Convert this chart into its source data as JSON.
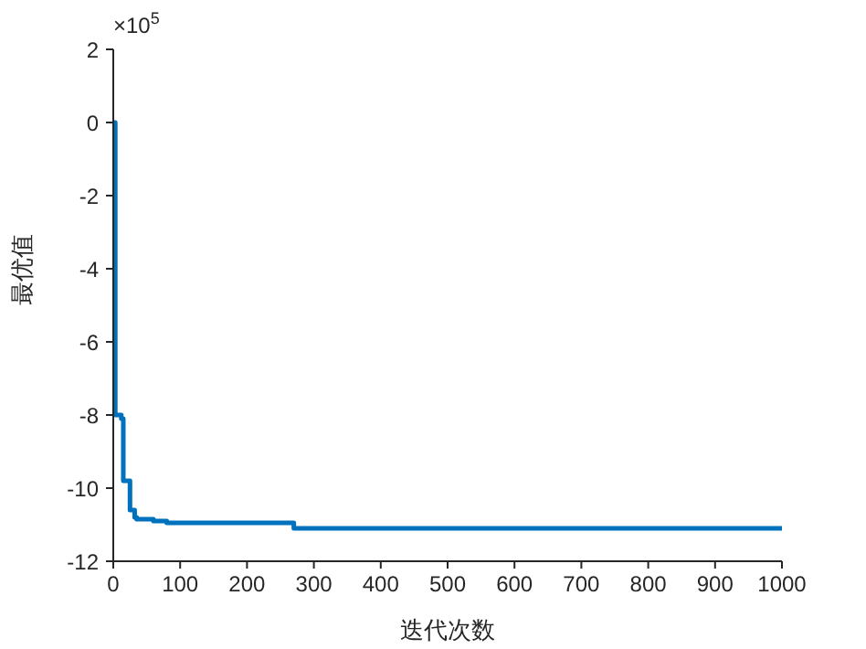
{
  "chart_data": {
    "type": "step",
    "xlabel": "迭代次数",
    "ylabel": "最优值",
    "annotations": [
      "×10$^{5}$"
    ],
    "x": [
      1,
      3,
      12,
      15,
      25,
      32,
      35,
      60,
      80,
      270,
      1000
    ],
    "series": [
      {
        "color": "#0072bd",
        "values": [
          0,
          -8,
          -8.1,
          -9.8,
          -10.6,
          -10.8,
          -10.85,
          -10.9,
          -10.95,
          -11.1,
          -11.1
        ]
      }
    ],
    "xlim": [
      0,
      1000
    ],
    "xticks": [
      0,
      100,
      200,
      300,
      400,
      500,
      600,
      700,
      800,
      900,
      1000
    ],
    "ylim": [
      -12,
      2
    ],
    "yticks": [
      -12,
      -10,
      -8,
      -6,
      -4,
      -2,
      0,
      2
    ],
    "grid": false,
    "legend": false,
    "marker": "none",
    "line_style": "solid"
  }
}
